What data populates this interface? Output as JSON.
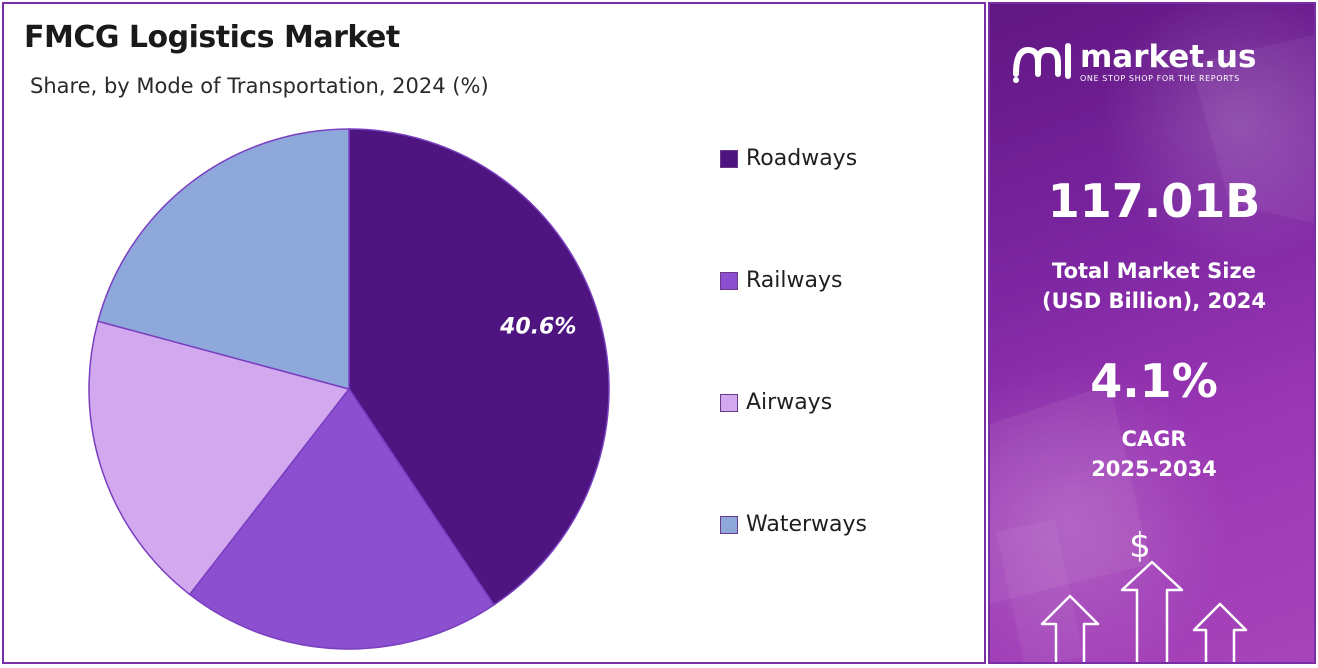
{
  "chart": {
    "title": "FMCG Logistics Market",
    "subtitle": "Share, by Mode of Transportation, 2024 (%)"
  },
  "chart_data": {
    "type": "pie",
    "title": "FMCG Logistics Market",
    "subtitle": "Share, by Mode of Transportation, 2024 (%)",
    "categories": [
      "Roadways",
      "Railways",
      "Airways",
      "Waterways"
    ],
    "values": [
      40.6,
      19.9,
      18.7,
      20.8
    ],
    "colors": [
      "#4e1580",
      "#8b4fd0",
      "#d2a8ee",
      "#8fa8dc"
    ],
    "data_labels": [
      "40.6%",
      "",
      "",
      ""
    ],
    "legend_position": "right"
  },
  "side_panel": {
    "brand_name": "market.us",
    "brand_tagline": "ONE STOP SHOP FOR THE REPORTS",
    "market_size_value": "117.01B",
    "market_size_label_line1": "Total Market Size",
    "market_size_label_line2": "(USD Billion), 2024",
    "cagr_value": "4.1%",
    "cagr_label_line1": "CAGR",
    "cagr_label_line2": "2025-2034",
    "dollar_symbol": "$",
    "icons": [
      "market-us-logo-icon",
      "dollar-icon",
      "growth-arrow-icon"
    ]
  }
}
